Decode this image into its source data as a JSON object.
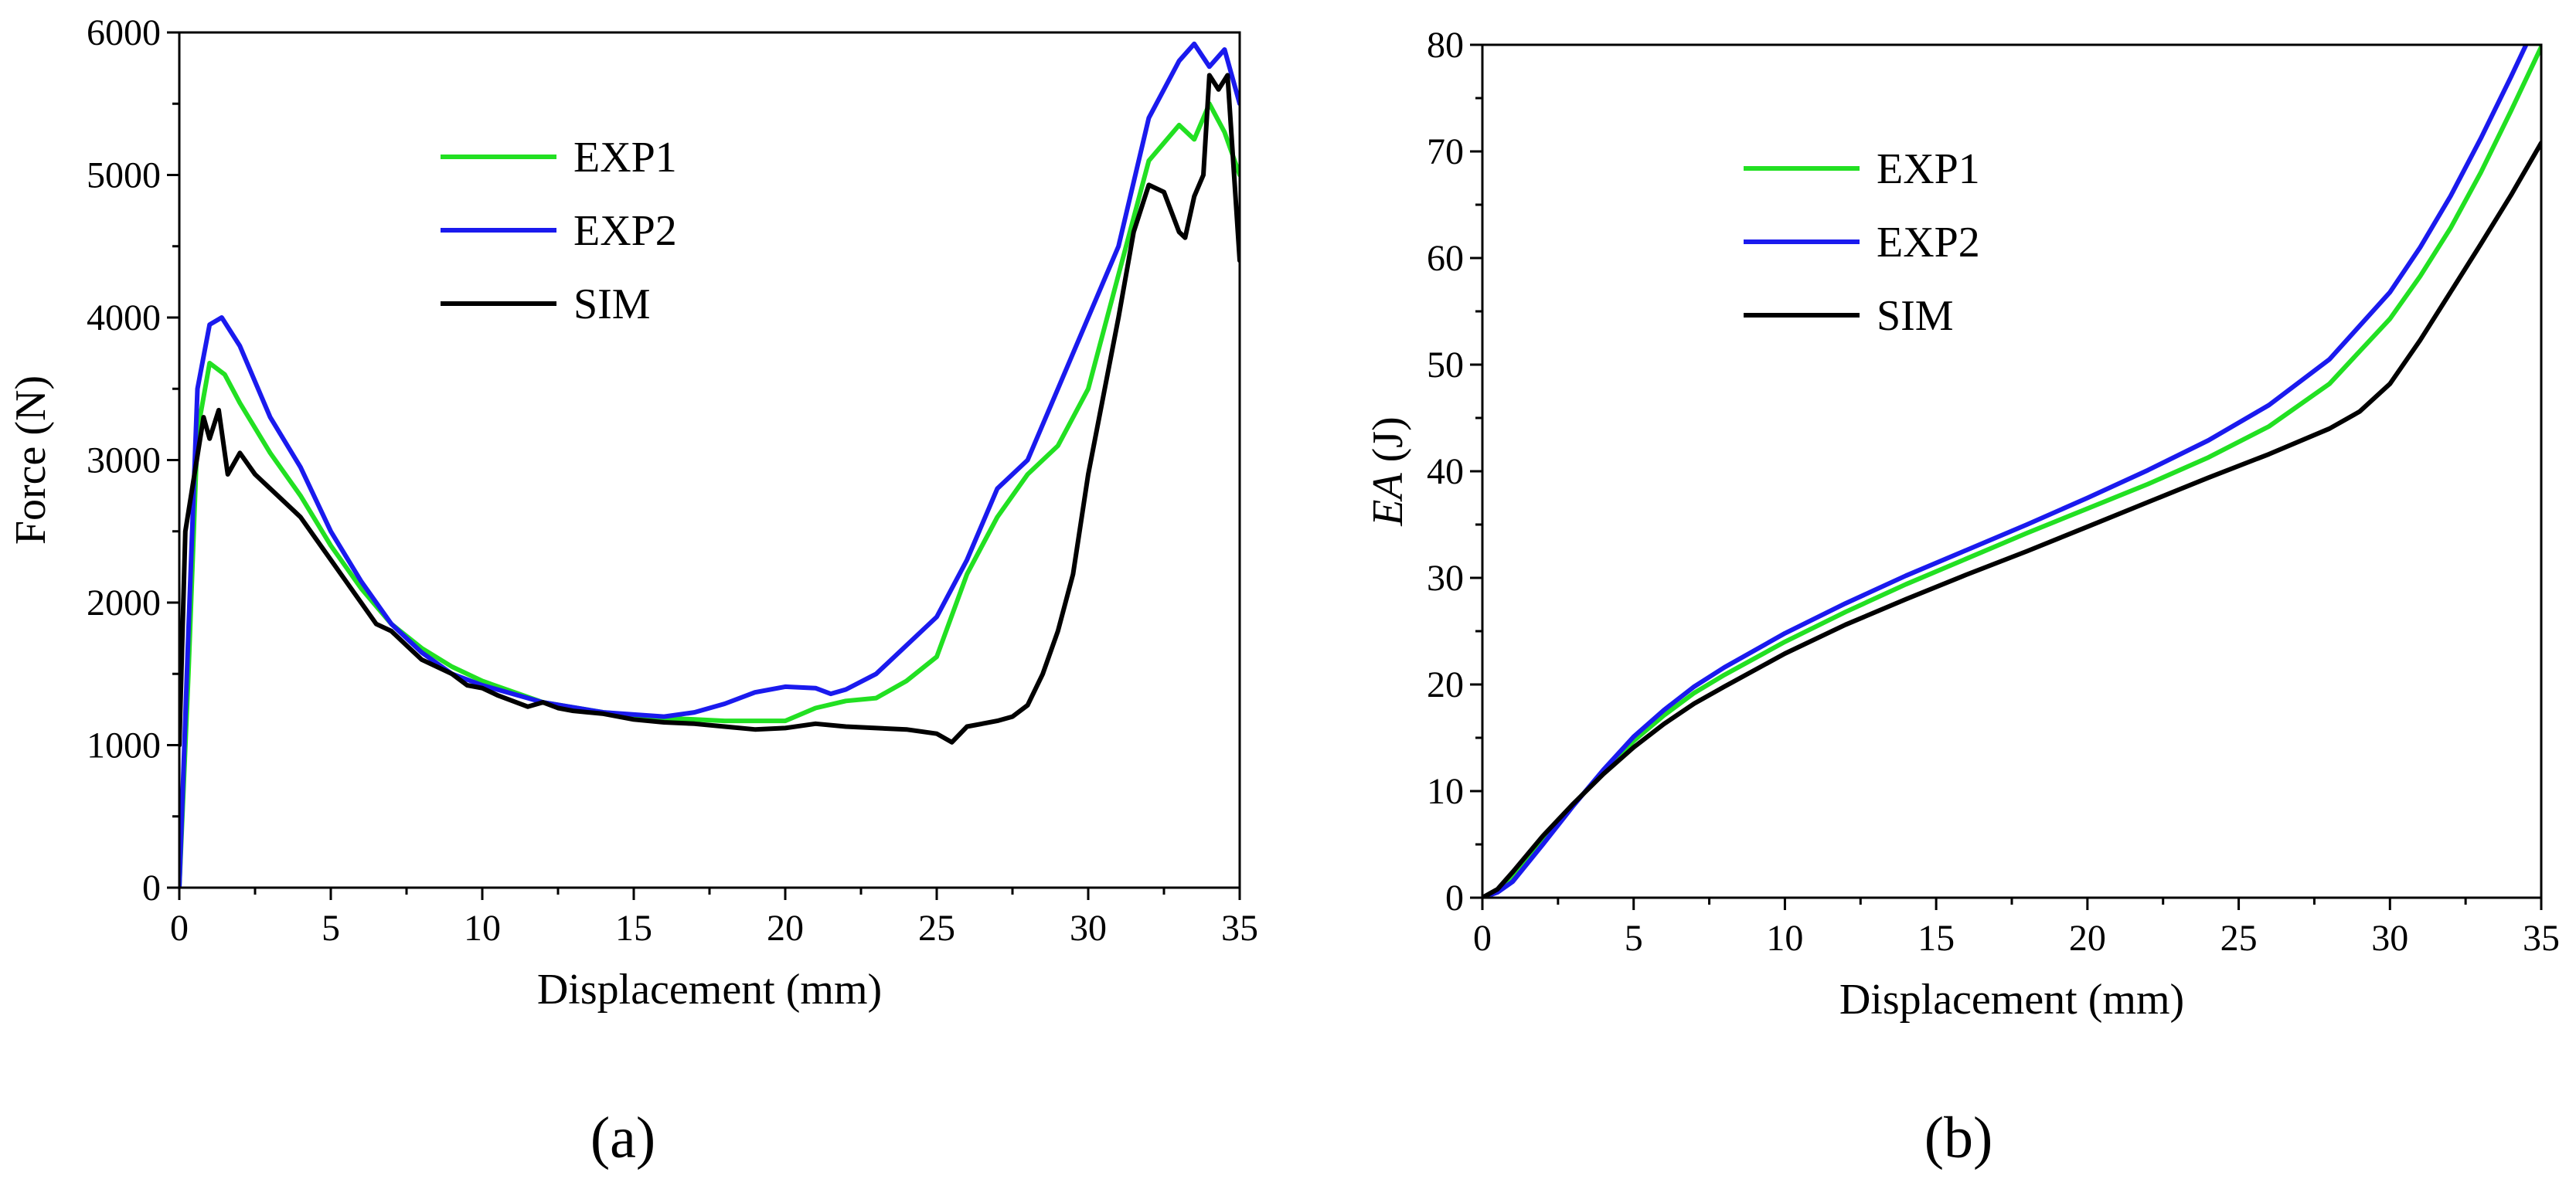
{
  "chart_data": [
    {
      "type": "line",
      "panel_label": "(a)",
      "xlabel": "Displacement (mm)",
      "ylabel": "Force (N)",
      "xlim": [
        0,
        35
      ],
      "ylim": [
        0,
        6000
      ],
      "xticks": [
        0,
        5,
        10,
        15,
        20,
        25,
        30,
        35
      ],
      "yticks": [
        0,
        1000,
        2000,
        3000,
        4000,
        5000,
        6000
      ],
      "legend_position": "top-center",
      "series": [
        {
          "name": "EXP1",
          "color": "#22e022",
          "x": [
            0,
            0.3,
            0.6,
            1.0,
            1.5,
            2,
            3,
            4,
            5,
            6,
            7,
            8,
            9,
            10,
            12,
            14,
            16,
            18,
            20,
            21,
            22,
            23,
            24,
            25,
            26,
            27,
            28,
            29,
            30,
            31,
            32,
            33,
            33.5,
            34,
            34.5,
            35
          ],
          "y": [
            0,
            1500,
            3200,
            3680,
            3600,
            3400,
            3050,
            2750,
            2400,
            2100,
            1850,
            1680,
            1550,
            1450,
            1300,
            1230,
            1190,
            1170,
            1170,
            1260,
            1310,
            1330,
            1450,
            1620,
            2200,
            2600,
            2900,
            3100,
            3500,
            4300,
            5100,
            5350,
            5250,
            5500,
            5300,
            5000
          ]
        },
        {
          "name": "EXP2",
          "color": "#1a1aee",
          "x": [
            0,
            0.3,
            0.6,
            1.0,
            1.4,
            2,
            3,
            4,
            5,
            6,
            7,
            8,
            9,
            10,
            12,
            14,
            16,
            17,
            18,
            19,
            20,
            21,
            21.5,
            22,
            23,
            24,
            25,
            26,
            27,
            28,
            29,
            30,
            31,
            32,
            33,
            33.5,
            34,
            34.5,
            35
          ],
          "y": [
            0,
            1800,
            3500,
            3950,
            4000,
            3800,
            3300,
            2950,
            2500,
            2150,
            1850,
            1650,
            1500,
            1420,
            1300,
            1230,
            1200,
            1230,
            1290,
            1370,
            1410,
            1400,
            1360,
            1390,
            1500,
            1700,
            1900,
            2300,
            2800,
            3000,
            3500,
            4000,
            4500,
            5400,
            5800,
            5920,
            5760,
            5880,
            5500
          ]
        },
        {
          "name": "SIM",
          "color": "#000000",
          "x": [
            0,
            0.2,
            0.5,
            0.8,
            1.0,
            1.3,
            1.6,
            2,
            2.5,
            3,
            3.5,
            4,
            4.5,
            5,
            5.5,
            6,
            6.5,
            7,
            7.5,
            8,
            8.5,
            9,
            9.5,
            10,
            10.5,
            11,
            11.5,
            12,
            12.5,
            13,
            14,
            15,
            16,
            17,
            18,
            19,
            20,
            21,
            22,
            23,
            24,
            25,
            25.5,
            26,
            27,
            27.5,
            28,
            28.5,
            29,
            29.5,
            30,
            30.5,
            31,
            31.5,
            32,
            32.5,
            33,
            33.2,
            33.5,
            33.8,
            34,
            34.3,
            34.6,
            35
          ],
          "y": [
            1000,
            2500,
            2900,
            3300,
            3150,
            3350,
            2900,
            3050,
            2900,
            2800,
            2700,
            2600,
            2450,
            2300,
            2150,
            2000,
            1850,
            1800,
            1700,
            1600,
            1550,
            1500,
            1420,
            1400,
            1350,
            1310,
            1270,
            1300,
            1260,
            1240,
            1220,
            1180,
            1160,
            1150,
            1130,
            1110,
            1120,
            1150,
            1130,
            1120,
            1110,
            1080,
            1020,
            1130,
            1170,
            1200,
            1280,
            1500,
            1800,
            2200,
            2900,
            3450,
            4000,
            4600,
            4930,
            4880,
            4600,
            4560,
            4850,
            5000,
            5700,
            5600,
            5700,
            4400
          ]
        }
      ]
    },
    {
      "type": "line",
      "panel_label": "(b)",
      "xlabel": "Displacement (mm)",
      "ylabel_italic": "EA",
      "ylabel_unit": " (J)",
      "xlim": [
        0,
        35
      ],
      "ylim": [
        0,
        80
      ],
      "xticks": [
        0,
        5,
        10,
        15,
        20,
        25,
        30,
        35
      ],
      "yticks": [
        0,
        10,
        20,
        30,
        40,
        50,
        60,
        70,
        80
      ],
      "legend_position": "top-center",
      "series": [
        {
          "name": "EXP1",
          "color": "#22e022",
          "x": [
            0,
            0.5,
            1,
            2,
            3,
            4,
            5,
            6,
            7,
            8,
            10,
            12,
            14,
            16,
            18,
            20,
            22,
            24,
            26,
            28,
            30,
            31,
            32,
            33,
            34,
            35
          ],
          "y": [
            0,
            0.6,
            1.9,
            5.4,
            8.7,
            11.8,
            14.7,
            17.1,
            19.2,
            20.9,
            24.0,
            26.8,
            29.4,
            31.8,
            34.2,
            36.5,
            38.8,
            41.3,
            44.2,
            48.2,
            54.3,
            58.3,
            62.8,
            68.0,
            73.8,
            79.8
          ]
        },
        {
          "name": "EXP2",
          "color": "#1a1aee",
          "x": [
            0,
            0.5,
            1,
            2,
            3,
            4,
            5,
            6,
            7,
            8,
            10,
            12,
            14,
            16,
            18,
            20,
            22,
            24,
            26,
            28,
            30,
            31,
            32,
            33,
            34,
            34.5
          ],
          "y": [
            0,
            0.5,
            1.5,
            5.0,
            8.6,
            12.0,
            15.1,
            17.6,
            19.8,
            21.6,
            24.8,
            27.6,
            30.2,
            32.6,
            35.0,
            37.5,
            40.1,
            42.9,
            46.2,
            50.5,
            56.8,
            61.0,
            65.8,
            71.2,
            77.0,
            80.0
          ]
        },
        {
          "name": "SIM",
          "color": "#000000",
          "x": [
            0,
            0.5,
            1,
            2,
            3,
            4,
            5,
            6,
            7,
            8,
            10,
            12,
            14,
            16,
            18,
            20,
            22,
            24,
            26,
            28,
            29,
            30,
            31,
            32,
            33,
            34,
            35
          ],
          "y": [
            0,
            0.8,
            2.4,
            5.8,
            8.8,
            11.6,
            14.1,
            16.3,
            18.2,
            19.8,
            22.9,
            25.6,
            28.0,
            30.3,
            32.5,
            34.8,
            37.1,
            39.4,
            41.6,
            44.0,
            45.6,
            48.2,
            52.3,
            56.8,
            61.3,
            65.9,
            70.8
          ]
        }
      ]
    }
  ]
}
